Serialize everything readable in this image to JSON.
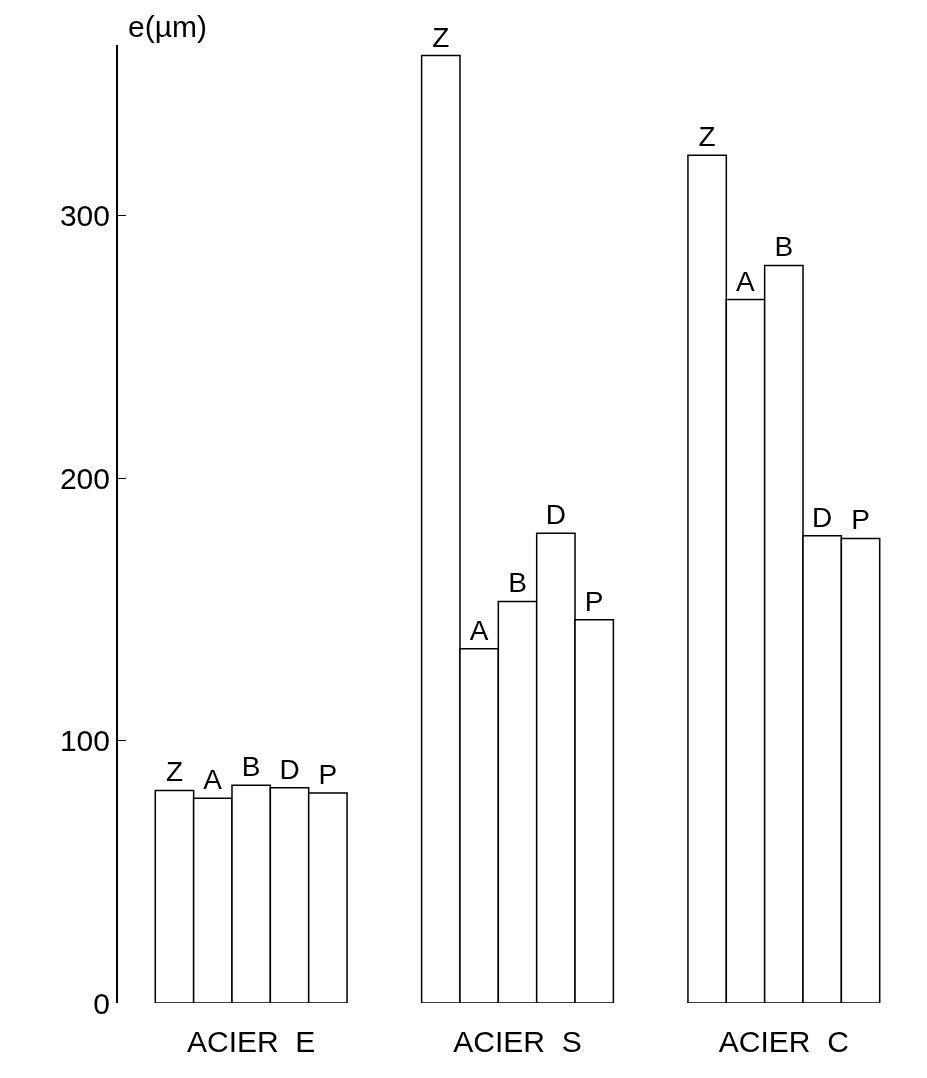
{
  "chart_data": {
    "type": "bar",
    "ylabel": "e(µm)",
    "categories": [
      "ACIER  E",
      "ACIER  S",
      "ACIER  C"
    ],
    "series": [
      {
        "name": "Z",
        "color": "#ffffff",
        "values": [
          81,
          361,
          323
        ]
      },
      {
        "name": "A",
        "color": "#ffffff",
        "values": [
          78,
          135,
          268
        ]
      },
      {
        "name": "B",
        "color": "#ffffff",
        "values": [
          83,
          153,
          281
        ]
      },
      {
        "name": "D",
        "color": "#ffffff",
        "values": [
          82,
          179,
          178
        ]
      },
      {
        "name": "P",
        "color": "#ffffff",
        "values": [
          80,
          146,
          177
        ]
      }
    ],
    "ylim": [
      0,
      365
    ],
    "yticks": [
      0,
      100,
      200,
      300
    ],
    "legend": false
  }
}
